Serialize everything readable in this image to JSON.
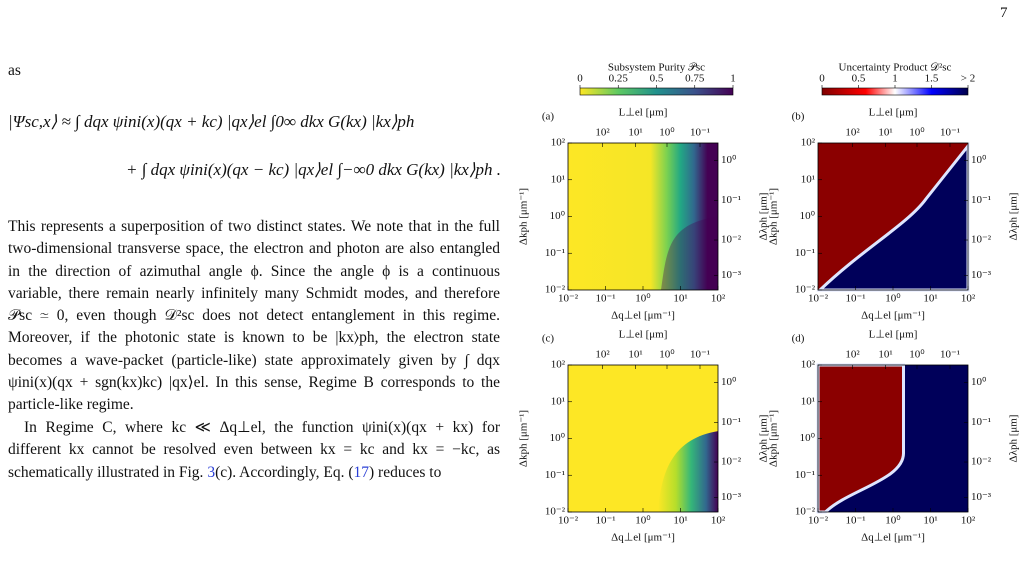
{
  "page_number": "7",
  "body": {
    "lead": "as",
    "equation": {
      "line1": "|Ψsc,x⟩ ≈ ∫ dqx ψini(x)(qx + kc) |qx⟩el ∫0∞ dkx G(kx) |kx⟩ph",
      "line2": "+ ∫ dqx ψini(x)(qx − kc) |qx⟩el ∫−∞0 dkx G(kx) |kx⟩ph ."
    },
    "paragraph1": "This represents a superposition of two distinct states. We note that in the full two-dimensional transverse space, the electron and photon are also entangled in the direction of azimuthal angle ϕ. Since the angle ϕ is a continuous variable, there remain nearly infinitely many Schmidt modes, and therefore 𝒫sc ≃ 0, even though 𝒟²sc does not detect entanglement in this regime. Moreover, if the photonic state is known to be |kx⟩ph, the electron state becomes a wave-packet (particle-like) state approximately given by ∫ dqx ψini(x)(qx + sgn(kx)kc) |qx⟩el. In this sense, Regime B corresponds to the particle-like regime.",
    "paragraph2": [
      "In Regime C, where kc ≪ Δq⊥el, the function ψini(x)(qx + kx) for different kx cannot be resolved even between kx = kc and kx = −kc, as schematically illustrated in Fig. ",
      "3",
      "(c). Accordingly, Eq. (",
      "17",
      ") reduces to"
    ]
  },
  "figure": {
    "colorbars": [
      {
        "label": "Subsystem Purity 𝒫sc",
        "ticks": [
          "0",
          "0.25",
          "0.5",
          "0.75",
          "1"
        ]
      },
      {
        "label": "Uncertainty Product 𝒟²sc",
        "ticks": [
          "0",
          "0.5",
          "1",
          "1.5",
          "> 2"
        ]
      }
    ],
    "axes": {
      "top_label": "L⊥el [μm]",
      "bottom_label": "Δq⊥el [μm⁻¹]",
      "left_label": "Δkph [μm⁻¹]",
      "right_label": "Δλph [μm]",
      "top_ticks": [
        "10²",
        "10¹",
        "10⁰",
        "10⁻¹"
      ],
      "bottom_ticks": [
        "10⁻²",
        "10⁻¹",
        "10⁰",
        "10¹",
        "10²"
      ],
      "left_ticks": [
        "10²",
        "10¹",
        "10⁰",
        "10⁻¹",
        "10⁻²"
      ],
      "right_ticks": [
        "10⁰",
        "10⁻¹",
        "10⁻²",
        "10⁻³"
      ]
    },
    "panels": [
      "(a)",
      "(b)",
      "(c)",
      "(d)"
    ]
  }
}
